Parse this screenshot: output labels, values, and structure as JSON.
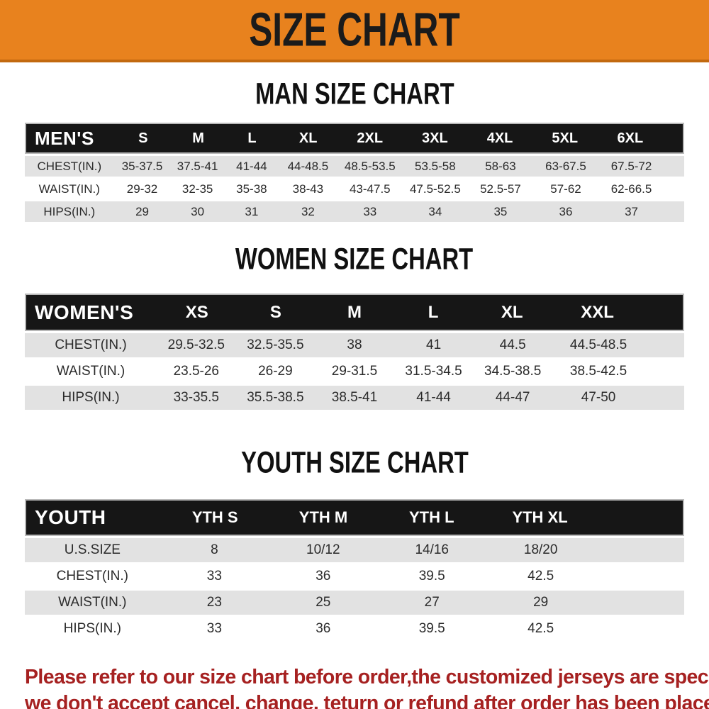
{
  "banner": {
    "title": "SIZE CHART"
  },
  "sections": [
    {
      "title": "MAN SIZE CHART",
      "header_label": "MEN'S",
      "columns": [
        "S",
        "M",
        "L",
        "XL",
        "2XL",
        "3XL",
        "4XL",
        "5XL",
        "6XL"
      ],
      "rows": [
        {
          "label": "CHEST(IN.)",
          "values": [
            "35-37.5",
            "37.5-41",
            "41-44",
            "44-48.5",
            "48.5-53.5",
            "53.5-58",
            "58-63",
            "63-67.5",
            "67.5-72"
          ]
        },
        {
          "label": "WAIST(IN.)",
          "values": [
            "29-32",
            "32-35",
            "35-38",
            "38-43",
            "43-47.5",
            "47.5-52.5",
            "52.5-57",
            "57-62",
            "62-66.5"
          ]
        },
        {
          "label": "HIPS(IN.)",
          "values": [
            "29",
            "30",
            "31",
            "32",
            "33",
            "34",
            "35",
            "36",
            "37"
          ]
        }
      ]
    },
    {
      "title": "WOMEN SIZE CHART",
      "header_label": "WOMEN'S",
      "columns": [
        "XS",
        "S",
        "M",
        "L",
        "XL",
        "XXL"
      ],
      "rows": [
        {
          "label": "CHEST(IN.)",
          "values": [
            "29.5-32.5",
            "32.5-35.5",
            "38",
            "41",
            "44.5",
            "44.5-48.5"
          ]
        },
        {
          "label": "WAIST(IN.)",
          "values": [
            "23.5-26",
            "26-29",
            "29-31.5",
            "31.5-34.5",
            "34.5-38.5",
            "38.5-42.5"
          ]
        },
        {
          "label": "HIPS(IN.)",
          "values": [
            "33-35.5",
            "35.5-38.5",
            "38.5-41",
            "41-44",
            "44-47",
            "47-50"
          ]
        }
      ]
    },
    {
      "title": "YOUTH SIZE CHART",
      "header_label": "YOUTH",
      "columns": [
        "YTH S",
        "YTH M",
        "YTH L",
        "YTH XL"
      ],
      "rows": [
        {
          "label": "U.S.SIZE",
          "values": [
            "8",
            "10/12",
            "14/16",
            "18/20"
          ]
        },
        {
          "label": "CHEST(IN.)",
          "values": [
            "33",
            "36",
            "39.5",
            "42.5"
          ]
        },
        {
          "label": "WAIST(IN.)",
          "values": [
            "23",
            "25",
            "27",
            "29"
          ]
        },
        {
          "label": "HIPS(IN.)",
          "values": [
            "33",
            "36",
            "39.5",
            "42.5"
          ]
        }
      ]
    }
  ],
  "footer": {
    "line1": "Please refer to our size chart before order,the customized jerseys are special products,",
    "line2": "we don't accept cancel, change, teturn or refund after order has been placed!"
  },
  "colors": {
    "banner_orange": "#E8821E",
    "banner_edge": "#C2690F",
    "header_black": "#161616",
    "row_gray": "#E2E2E2",
    "footer_red": "#A62121"
  }
}
